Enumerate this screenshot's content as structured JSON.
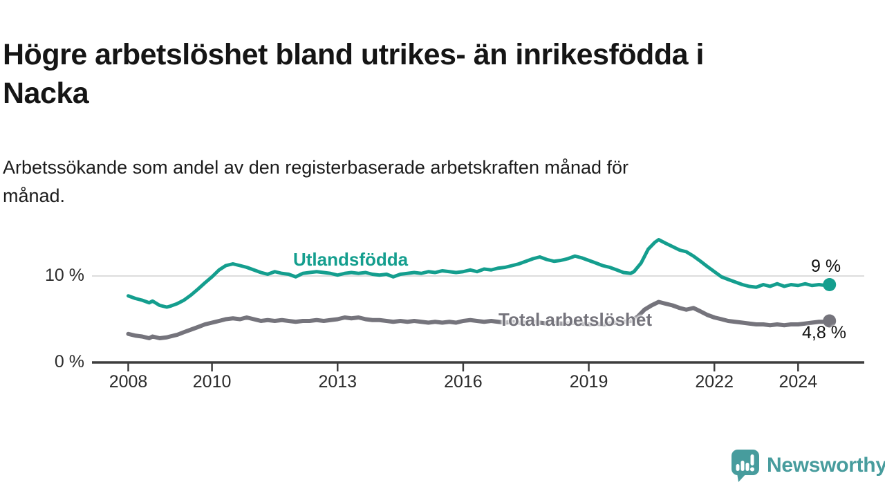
{
  "header": {
    "title": "Högre arbetslöshet bland utrikes- än inrikesfödda i\nNacka",
    "subtitle": "Arbetssökande som andel av den registerbaserade arbetskraften månad för\nmånad."
  },
  "chart_data": {
    "type": "line",
    "unit": "%",
    "grid": "horizontal gridline at 10% only, baseline axis at 0%",
    "legend_position": "inline labels next to lines",
    "xlim": [
      2008,
      2025
    ],
    "ylim": [
      0,
      16
    ],
    "x_ticks": [
      2008,
      2010,
      2013,
      2016,
      2019,
      2022,
      2024
    ],
    "y_ticks": [
      {
        "value": 10,
        "label": "10 %"
      },
      {
        "value": 0,
        "label": "0 %"
      }
    ],
    "series": [
      {
        "name": "Utlandsfödda",
        "color": "#149e8e",
        "end_label": "9 %",
        "end_value": 9.0,
        "points": [
          [
            2008,
            7.7
          ],
          [
            2008.17,
            7.4
          ],
          [
            2008.33,
            7.2
          ],
          [
            2008.5,
            6.9
          ],
          [
            2008.58,
            7.1
          ],
          [
            2008.75,
            6.6
          ],
          [
            2008.92,
            6.4
          ],
          [
            2009,
            6.5
          ],
          [
            2009.17,
            6.8
          ],
          [
            2009.33,
            7.2
          ],
          [
            2009.5,
            7.8
          ],
          [
            2009.67,
            8.5
          ],
          [
            2009.83,
            9.2
          ],
          [
            2010,
            9.9
          ],
          [
            2010.17,
            10.7
          ],
          [
            2010.33,
            11.2
          ],
          [
            2010.5,
            11.4
          ],
          [
            2010.67,
            11.2
          ],
          [
            2010.83,
            11
          ],
          [
            2011,
            10.7
          ],
          [
            2011.17,
            10.4
          ],
          [
            2011.33,
            10.2
          ],
          [
            2011.5,
            10.5
          ],
          [
            2011.67,
            10.3
          ],
          [
            2011.83,
            10.2
          ],
          [
            2012,
            9.9
          ],
          [
            2012.17,
            10.3
          ],
          [
            2012.33,
            10.4
          ],
          [
            2012.5,
            10.5
          ],
          [
            2012.67,
            10.4
          ],
          [
            2012.83,
            10.3
          ],
          [
            2013,
            10.1
          ],
          [
            2013.17,
            10.3
          ],
          [
            2013.33,
            10.4
          ],
          [
            2013.5,
            10.3
          ],
          [
            2013.67,
            10.4
          ],
          [
            2013.83,
            10.2
          ],
          [
            2014,
            10.1
          ],
          [
            2014.17,
            10.2
          ],
          [
            2014.33,
            9.9
          ],
          [
            2014.5,
            10.2
          ],
          [
            2014.67,
            10.3
          ],
          [
            2014.83,
            10.4
          ],
          [
            2015,
            10.3
          ],
          [
            2015.17,
            10.5
          ],
          [
            2015.33,
            10.4
          ],
          [
            2015.5,
            10.6
          ],
          [
            2015.67,
            10.5
          ],
          [
            2015.83,
            10.4
          ],
          [
            2016,
            10.5
          ],
          [
            2016.17,
            10.7
          ],
          [
            2016.33,
            10.5
          ],
          [
            2016.5,
            10.8
          ],
          [
            2016.67,
            10.7
          ],
          [
            2016.83,
            10.9
          ],
          [
            2017,
            11
          ],
          [
            2017.17,
            11.2
          ],
          [
            2017.33,
            11.4
          ],
          [
            2017.5,
            11.7
          ],
          [
            2017.67,
            12
          ],
          [
            2017.83,
            12.2
          ],
          [
            2018,
            11.9
          ],
          [
            2018.17,
            11.7
          ],
          [
            2018.33,
            11.8
          ],
          [
            2018.5,
            12
          ],
          [
            2018.67,
            12.3
          ],
          [
            2018.83,
            12.1
          ],
          [
            2019,
            11.8
          ],
          [
            2019.17,
            11.5
          ],
          [
            2019.33,
            11.2
          ],
          [
            2019.5,
            11
          ],
          [
            2019.67,
            10.7
          ],
          [
            2019.83,
            10.4
          ],
          [
            2020,
            10.3
          ],
          [
            2020.08,
            10.5
          ],
          [
            2020.25,
            11.5
          ],
          [
            2020.42,
            13.1
          ],
          [
            2020.58,
            13.9
          ],
          [
            2020.67,
            14.2
          ],
          [
            2020.83,
            13.8
          ],
          [
            2021,
            13.4
          ],
          [
            2021.17,
            13
          ],
          [
            2021.33,
            12.8
          ],
          [
            2021.5,
            12.3
          ],
          [
            2021.67,
            11.7
          ],
          [
            2021.83,
            11.1
          ],
          [
            2022,
            10.5
          ],
          [
            2022.17,
            9.9
          ],
          [
            2022.33,
            9.6
          ],
          [
            2022.5,
            9.3
          ],
          [
            2022.67,
            9
          ],
          [
            2022.83,
            8.8
          ],
          [
            2023,
            8.7
          ],
          [
            2023.17,
            9
          ],
          [
            2023.33,
            8.8
          ],
          [
            2023.5,
            9.1
          ],
          [
            2023.67,
            8.8
          ],
          [
            2023.83,
            9
          ],
          [
            2024,
            8.9
          ],
          [
            2024.17,
            9.1
          ],
          [
            2024.33,
            8.9
          ],
          [
            2024.5,
            9
          ],
          [
            2024.67,
            8.9
          ],
          [
            2024.75,
            9
          ]
        ]
      },
      {
        "name": "Total arbetslöshet",
        "color": "#75747c",
        "end_label": "4,8 %",
        "end_value": 4.8,
        "points": [
          [
            2008,
            3.3
          ],
          [
            2008.17,
            3.1
          ],
          [
            2008.33,
            3
          ],
          [
            2008.5,
            2.8
          ],
          [
            2008.58,
            3
          ],
          [
            2008.75,
            2.8
          ],
          [
            2008.92,
            2.9
          ],
          [
            2009,
            3
          ],
          [
            2009.17,
            3.2
          ],
          [
            2009.33,
            3.5
          ],
          [
            2009.5,
            3.8
          ],
          [
            2009.67,
            4.1
          ],
          [
            2009.83,
            4.4
          ],
          [
            2010,
            4.6
          ],
          [
            2010.17,
            4.8
          ],
          [
            2010.33,
            5
          ],
          [
            2010.5,
            5.1
          ],
          [
            2010.67,
            5
          ],
          [
            2010.83,
            5.2
          ],
          [
            2011,
            5
          ],
          [
            2011.17,
            4.8
          ],
          [
            2011.33,
            4.9
          ],
          [
            2011.5,
            4.8
          ],
          [
            2011.67,
            4.9
          ],
          [
            2011.83,
            4.8
          ],
          [
            2012,
            4.7
          ],
          [
            2012.17,
            4.8
          ],
          [
            2012.33,
            4.8
          ],
          [
            2012.5,
            4.9
          ],
          [
            2012.67,
            4.8
          ],
          [
            2012.83,
            4.9
          ],
          [
            2013,
            5
          ],
          [
            2013.17,
            5.2
          ],
          [
            2013.33,
            5.1
          ],
          [
            2013.5,
            5.2
          ],
          [
            2013.67,
            5
          ],
          [
            2013.83,
            4.9
          ],
          [
            2014,
            4.9
          ],
          [
            2014.17,
            4.8
          ],
          [
            2014.33,
            4.7
          ],
          [
            2014.5,
            4.8
          ],
          [
            2014.67,
            4.7
          ],
          [
            2014.83,
            4.8
          ],
          [
            2015,
            4.7
          ],
          [
            2015.17,
            4.6
          ],
          [
            2015.33,
            4.7
          ],
          [
            2015.5,
            4.6
          ],
          [
            2015.67,
            4.7
          ],
          [
            2015.83,
            4.6
          ],
          [
            2016,
            4.8
          ],
          [
            2016.17,
            4.9
          ],
          [
            2016.33,
            4.8
          ],
          [
            2016.5,
            4.7
          ],
          [
            2016.67,
            4.8
          ],
          [
            2016.83,
            4.7
          ],
          [
            2017,
            4.6
          ],
          [
            2017.17,
            4.7
          ],
          [
            2017.33,
            4.6
          ],
          [
            2017.5,
            4.6
          ],
          [
            2017.67,
            4.7
          ],
          [
            2017.83,
            4.6
          ],
          [
            2018,
            4.5
          ],
          [
            2018.17,
            4.6
          ],
          [
            2018.33,
            4.5
          ],
          [
            2018.5,
            4.5
          ],
          [
            2018.67,
            4.6
          ],
          [
            2018.83,
            4.5
          ],
          [
            2019,
            4.4
          ],
          [
            2019.17,
            4.5
          ],
          [
            2019.33,
            4.4
          ],
          [
            2019.5,
            4.5
          ],
          [
            2019.67,
            4.6
          ],
          [
            2019.83,
            4.7
          ],
          [
            2020,
            4.8
          ],
          [
            2020.17,
            5.3
          ],
          [
            2020.33,
            6.1
          ],
          [
            2020.5,
            6.6
          ],
          [
            2020.67,
            7
          ],
          [
            2020.83,
            6.8
          ],
          [
            2021,
            6.6
          ],
          [
            2021.17,
            6.3
          ],
          [
            2021.33,
            6.1
          ],
          [
            2021.5,
            6.3
          ],
          [
            2021.67,
            5.9
          ],
          [
            2021.83,
            5.5
          ],
          [
            2022,
            5.2
          ],
          [
            2022.17,
            5
          ],
          [
            2022.33,
            4.8
          ],
          [
            2022.5,
            4.7
          ],
          [
            2022.67,
            4.6
          ],
          [
            2022.83,
            4.5
          ],
          [
            2023,
            4.4
          ],
          [
            2023.17,
            4.4
          ],
          [
            2023.33,
            4.3
          ],
          [
            2023.5,
            4.4
          ],
          [
            2023.67,
            4.3
          ],
          [
            2023.83,
            4.4
          ],
          [
            2024,
            4.4
          ],
          [
            2024.17,
            4.5
          ],
          [
            2024.33,
            4.6
          ],
          [
            2024.5,
            4.7
          ],
          [
            2024.67,
            4.7
          ],
          [
            2024.75,
            4.8
          ]
        ]
      }
    ]
  },
  "colors": {
    "axis": "#3d3d3d",
    "gridline": "#dcdcdc",
    "tick_label": "#2b2b2b",
    "title": "#151515",
    "brand": "#479c9d"
  },
  "footer": {
    "brand": "Newsworthy"
  }
}
